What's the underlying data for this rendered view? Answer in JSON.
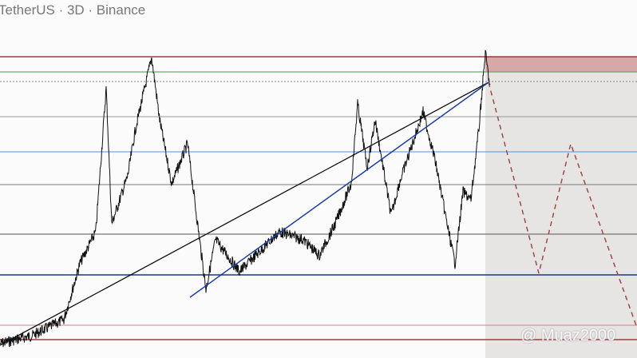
{
  "header": {
    "title": "TetherUS · 3D · Binance"
  },
  "watermark": "@ Muaz2000"
}
